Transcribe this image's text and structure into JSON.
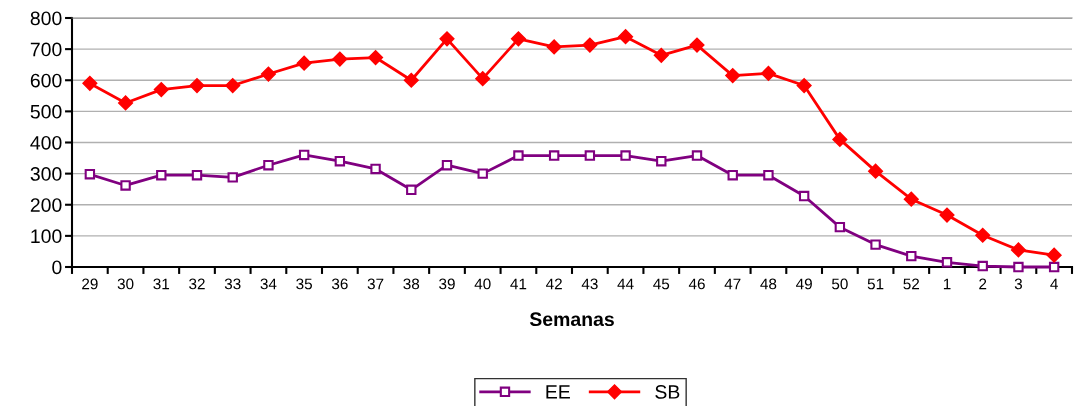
{
  "chart_data": {
    "type": "line",
    "xlabel": "Semanas",
    "categories": [
      "29",
      "30",
      "31",
      "32",
      "33",
      "34",
      "35",
      "36",
      "37",
      "38",
      "39",
      "40",
      "41",
      "42",
      "43",
      "44",
      "45",
      "46",
      "47",
      "48",
      "49",
      "50",
      "51",
      "52",
      "1",
      "2",
      "3",
      "4"
    ],
    "series": [
      {
        "name": "EE",
        "color": "#800080",
        "marker": "square",
        "values": [
          298,
          262,
          295,
          295,
          288,
          327,
          360,
          340,
          315,
          248,
          327,
          300,
          358,
          358,
          358,
          358,
          340,
          358,
          295,
          295,
          228,
          128,
          72,
          35,
          15,
          3,
          0,
          0
        ]
      },
      {
        "name": "SB",
        "color": "#ff0000",
        "marker": "diamond",
        "values": [
          590,
          527,
          570,
          583,
          583,
          620,
          655,
          668,
          673,
          600,
          733,
          605,
          733,
          707,
          713,
          740,
          680,
          713,
          615,
          622,
          583,
          410,
          308,
          218,
          167,
          102,
          55,
          38
        ]
      }
    ],
    "ylim": [
      0,
      800
    ],
    "yticks": [
      0,
      100,
      200,
      300,
      400,
      500,
      600,
      700,
      800
    ],
    "grid": "y",
    "legend": "bottom"
  }
}
